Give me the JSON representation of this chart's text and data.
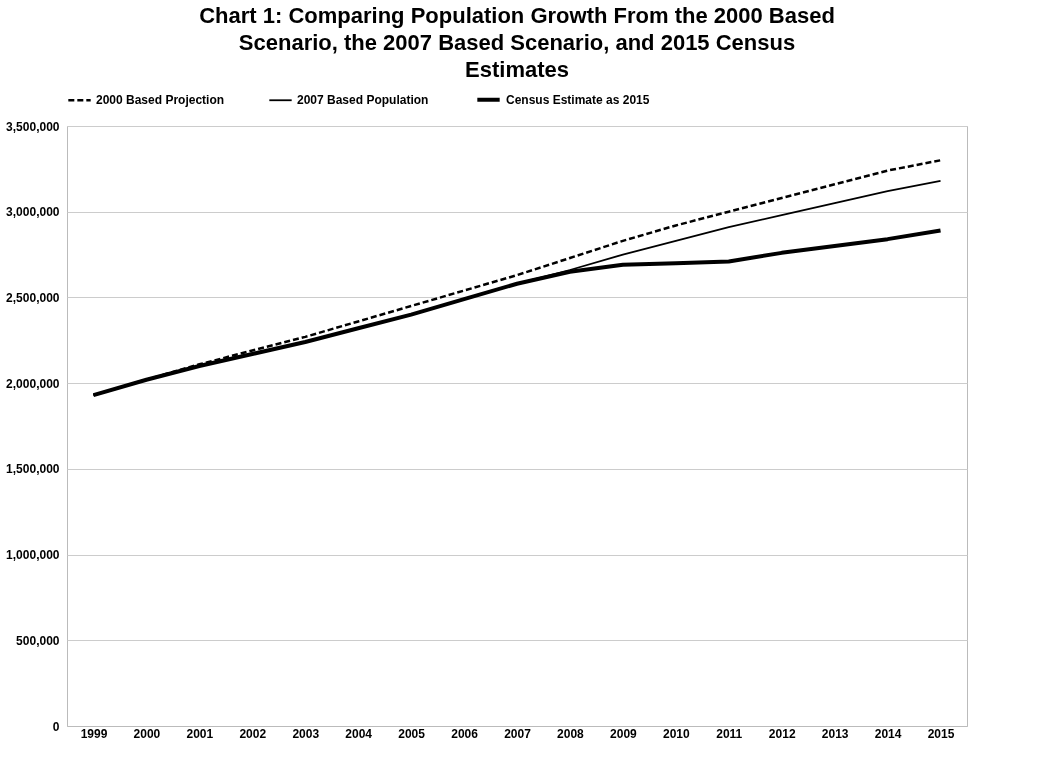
{
  "chart_data": {
    "type": "line",
    "title": "Chart 1: Comparing Population Growth From the 2000 Based Scenario, the 2007 Based Scenario, and 2015 Census Estimates",
    "categories": [
      "1999",
      "2000",
      "2001",
      "2002",
      "2003",
      "2004",
      "2005",
      "2006",
      "2007",
      "2008",
      "2009",
      "2010",
      "2011",
      "2012",
      "2013",
      "2014",
      "2015"
    ],
    "series": [
      {
        "name": "2000 Based Projection",
        "color": "#000000",
        "line_style": "dashed",
        "values": [
          1930000,
          2020000,
          2110000,
          2190000,
          2270000,
          2360000,
          2450000,
          2540000,
          2630000,
          2730000,
          2830000,
          2920000,
          3000000,
          3080000,
          3160000,
          3240000,
          3300000
        ]
      },
      {
        "name": "2007 Based Population",
        "color": "#000000",
        "line_style": "solid",
        "values": [
          1930000,
          2020000,
          2100000,
          2170000,
          2240000,
          2320000,
          2400000,
          2490000,
          2580000,
          2660000,
          2750000,
          2830000,
          2910000,
          2980000,
          3050000,
          3120000,
          3180000
        ]
      },
      {
        "name": "Census Estimate as 2015",
        "color": "#000000",
        "line_style": "solid",
        "values": [
          1930000,
          2020000,
          2100000,
          2170000,
          2240000,
          2320000,
          2400000,
          2490000,
          2580000,
          2650000,
          2690000,
          2700000,
          2710000,
          2760000,
          2800000,
          2840000,
          2890000
        ]
      }
    ],
    "ylim": [
      0,
      3500000
    ],
    "yticks": [
      0,
      {
        "value": 500000,
        "label": "500,000"
      },
      {
        "value": 1000000,
        "label": "1,000,000"
      },
      {
        "value": 1500000,
        "label": "1,500,000"
      },
      {
        "value": 2000000,
        "label": "2,000,000"
      },
      {
        "value": 2500000,
        "label": "2,500,000"
      },
      {
        "value": 3000000,
        "label": "3,000,000"
      },
      {
        "value": 3500000,
        "label": "3,500,000"
      }
    ],
    "grid": "y",
    "legend": "top",
    "marker": "none"
  }
}
